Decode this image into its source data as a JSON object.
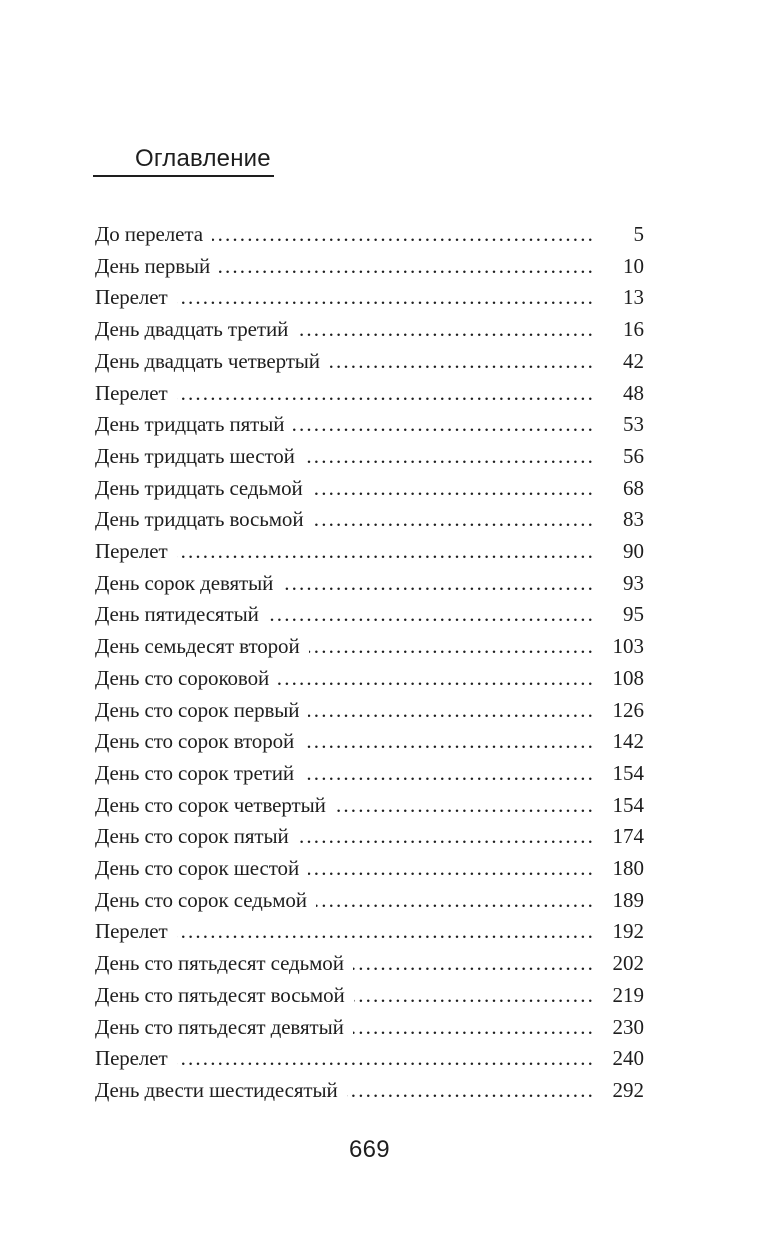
{
  "theme": {
    "text-color": "#1e1e1e",
    "page-bg": "#ffffff"
  },
  "page": {
    "heading": "Оглавление",
    "footer_page_number": "669"
  },
  "toc": {
    "entries": [
      {
        "title": "До перелета",
        "page": "5"
      },
      {
        "title": "День первый",
        "page": "10"
      },
      {
        "title": "Перелет",
        "page": "13"
      },
      {
        "title": "День двадцать третий",
        "page": "16"
      },
      {
        "title": "День двадцать четвертый",
        "page": "42"
      },
      {
        "title": "Перелет",
        "page": "48"
      },
      {
        "title": "День тридцать пятый",
        "page": "53"
      },
      {
        "title": "День тридцать шестой",
        "page": "56"
      },
      {
        "title": "День тридцать седьмой",
        "page": "68"
      },
      {
        "title": "День тридцать восьмой",
        "page": "83"
      },
      {
        "title": "Перелет",
        "page": "90"
      },
      {
        "title": "День сорок девятый",
        "page": "93"
      },
      {
        "title": "День пятидесятый",
        "page": "95"
      },
      {
        "title": "День семьдесят второй",
        "page": "103"
      },
      {
        "title": "День сто сороковой",
        "page": "108"
      },
      {
        "title": "День сто сорок первый",
        "page": "126"
      },
      {
        "title": "День сто сорок второй",
        "page": "142"
      },
      {
        "title": "День сто сорок третий",
        "page": "154"
      },
      {
        "title": "День сто сорок четвертый",
        "page": "154"
      },
      {
        "title": "День сто сорок пятый",
        "page": "174"
      },
      {
        "title": "День сто сорок шестой",
        "page": "180"
      },
      {
        "title": "День сто сорок седьмой",
        "page": "189"
      },
      {
        "title": "Перелет",
        "page": "192"
      },
      {
        "title": "День сто пятьдесят седьмой",
        "page": "202"
      },
      {
        "title": "День сто пятьдесят восьмой",
        "page": "219"
      },
      {
        "title": "День сто пятьдесят девятый",
        "page": "230"
      },
      {
        "title": "Перелет",
        "page": "240"
      },
      {
        "title": "День двести шестидесятый",
        "page": "292"
      }
    ]
  }
}
